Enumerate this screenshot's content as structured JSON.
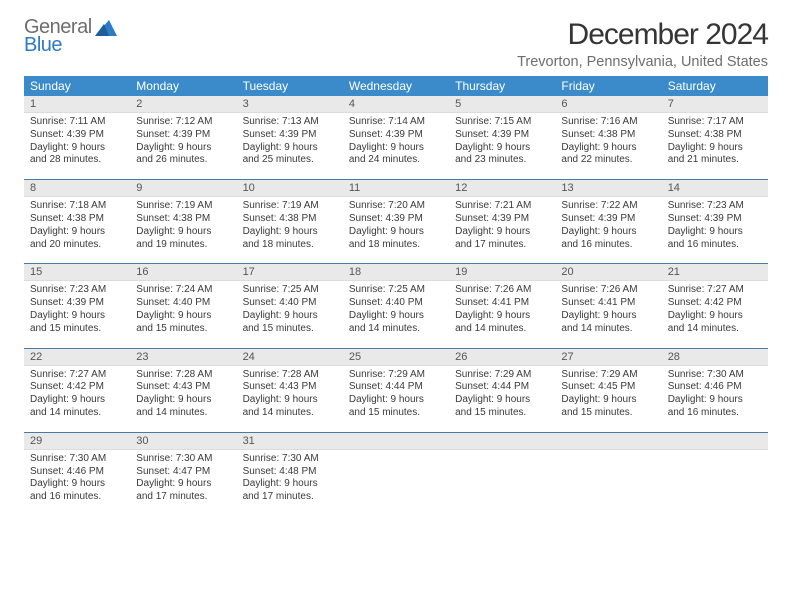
{
  "logo": {
    "line1": "General",
    "line2": "Blue"
  },
  "title": "December 2024",
  "location": "Trevorton, Pennsylvania, United States",
  "colors": {
    "header_bg": "#3b8bca",
    "header_fg": "#ffffff",
    "daynum_bg": "#e9e9e9",
    "row_divider": "#4a7aa6",
    "logo_gray": "#6e6e6e",
    "logo_blue": "#2f7ac4",
    "title_color": "#353535",
    "text": "#3a3a3a"
  },
  "weekdays": [
    "Sunday",
    "Monday",
    "Tuesday",
    "Wednesday",
    "Thursday",
    "Friday",
    "Saturday"
  ],
  "weeks": [
    [
      {
        "n": "1",
        "sr": "7:11 AM",
        "ss": "4:39 PM",
        "dl": "9 hours and 28 minutes."
      },
      {
        "n": "2",
        "sr": "7:12 AM",
        "ss": "4:39 PM",
        "dl": "9 hours and 26 minutes."
      },
      {
        "n": "3",
        "sr": "7:13 AM",
        "ss": "4:39 PM",
        "dl": "9 hours and 25 minutes."
      },
      {
        "n": "4",
        "sr": "7:14 AM",
        "ss": "4:39 PM",
        "dl": "9 hours and 24 minutes."
      },
      {
        "n": "5",
        "sr": "7:15 AM",
        "ss": "4:39 PM",
        "dl": "9 hours and 23 minutes."
      },
      {
        "n": "6",
        "sr": "7:16 AM",
        "ss": "4:38 PM",
        "dl": "9 hours and 22 minutes."
      },
      {
        "n": "7",
        "sr": "7:17 AM",
        "ss": "4:38 PM",
        "dl": "9 hours and 21 minutes."
      }
    ],
    [
      {
        "n": "8",
        "sr": "7:18 AM",
        "ss": "4:38 PM",
        "dl": "9 hours and 20 minutes."
      },
      {
        "n": "9",
        "sr": "7:19 AM",
        "ss": "4:38 PM",
        "dl": "9 hours and 19 minutes."
      },
      {
        "n": "10",
        "sr": "7:19 AM",
        "ss": "4:38 PM",
        "dl": "9 hours and 18 minutes."
      },
      {
        "n": "11",
        "sr": "7:20 AM",
        "ss": "4:39 PM",
        "dl": "9 hours and 18 minutes."
      },
      {
        "n": "12",
        "sr": "7:21 AM",
        "ss": "4:39 PM",
        "dl": "9 hours and 17 minutes."
      },
      {
        "n": "13",
        "sr": "7:22 AM",
        "ss": "4:39 PM",
        "dl": "9 hours and 16 minutes."
      },
      {
        "n": "14",
        "sr": "7:23 AM",
        "ss": "4:39 PM",
        "dl": "9 hours and 16 minutes."
      }
    ],
    [
      {
        "n": "15",
        "sr": "7:23 AM",
        "ss": "4:39 PM",
        "dl": "9 hours and 15 minutes."
      },
      {
        "n": "16",
        "sr": "7:24 AM",
        "ss": "4:40 PM",
        "dl": "9 hours and 15 minutes."
      },
      {
        "n": "17",
        "sr": "7:25 AM",
        "ss": "4:40 PM",
        "dl": "9 hours and 15 minutes."
      },
      {
        "n": "18",
        "sr": "7:25 AM",
        "ss": "4:40 PM",
        "dl": "9 hours and 14 minutes."
      },
      {
        "n": "19",
        "sr": "7:26 AM",
        "ss": "4:41 PM",
        "dl": "9 hours and 14 minutes."
      },
      {
        "n": "20",
        "sr": "7:26 AM",
        "ss": "4:41 PM",
        "dl": "9 hours and 14 minutes."
      },
      {
        "n": "21",
        "sr": "7:27 AM",
        "ss": "4:42 PM",
        "dl": "9 hours and 14 minutes."
      }
    ],
    [
      {
        "n": "22",
        "sr": "7:27 AM",
        "ss": "4:42 PM",
        "dl": "9 hours and 14 minutes."
      },
      {
        "n": "23",
        "sr": "7:28 AM",
        "ss": "4:43 PM",
        "dl": "9 hours and 14 minutes."
      },
      {
        "n": "24",
        "sr": "7:28 AM",
        "ss": "4:43 PM",
        "dl": "9 hours and 14 minutes."
      },
      {
        "n": "25",
        "sr": "7:29 AM",
        "ss": "4:44 PM",
        "dl": "9 hours and 15 minutes."
      },
      {
        "n": "26",
        "sr": "7:29 AM",
        "ss": "4:44 PM",
        "dl": "9 hours and 15 minutes."
      },
      {
        "n": "27",
        "sr": "7:29 AM",
        "ss": "4:45 PM",
        "dl": "9 hours and 15 minutes."
      },
      {
        "n": "28",
        "sr": "7:30 AM",
        "ss": "4:46 PM",
        "dl": "9 hours and 16 minutes."
      }
    ],
    [
      {
        "n": "29",
        "sr": "7:30 AM",
        "ss": "4:46 PM",
        "dl": "9 hours and 16 minutes."
      },
      {
        "n": "30",
        "sr": "7:30 AM",
        "ss": "4:47 PM",
        "dl": "9 hours and 17 minutes."
      },
      {
        "n": "31",
        "sr": "7:30 AM",
        "ss": "4:48 PM",
        "dl": "9 hours and 17 minutes."
      },
      null,
      null,
      null,
      null
    ]
  ],
  "labels": {
    "sunrise": "Sunrise:",
    "sunset": "Sunset:",
    "daylight": "Daylight:"
  }
}
